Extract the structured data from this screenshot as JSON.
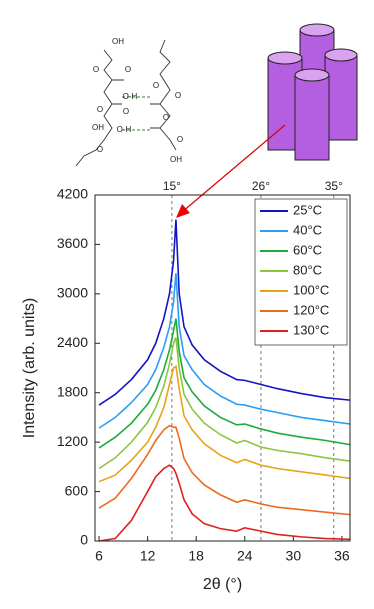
{
  "chart_data": {
    "type": "line",
    "xlabel": "2θ (°)",
    "ylabel": "Intensity (arb. units)",
    "xlim": [
      5.5,
      37
    ],
    "ylim": [
      0,
      4200
    ],
    "xticks": [
      6,
      12,
      18,
      24,
      30,
      36
    ],
    "yticks": [
      0,
      600,
      1200,
      1800,
      2400,
      3000,
      3600,
      4200
    ],
    "top_markers": [
      {
        "value": 15,
        "label": "15°"
      },
      {
        "value": 26,
        "label": "26°"
      },
      {
        "value": 35,
        "label": "35°"
      }
    ],
    "x": [
      6,
      8,
      10,
      12,
      13,
      14,
      14.7,
      15.2,
      15.5,
      15.9,
      16.5,
      17.5,
      19,
      21,
      23,
      24,
      26,
      28,
      31,
      34,
      37
    ],
    "series": [
      {
        "name": "25°C",
        "color": "#1414c4",
        "values": [
          1650,
          1780,
          1960,
          2200,
          2400,
          2700,
          3000,
          3400,
          3900,
          3000,
          2600,
          2380,
          2200,
          2060,
          1960,
          1950,
          1900,
          1850,
          1790,
          1740,
          1710
        ]
      },
      {
        "name": "40°C",
        "color": "#2a9df4",
        "values": [
          1370,
          1500,
          1680,
          1900,
          2080,
          2350,
          2600,
          2900,
          3250,
          2600,
          2250,
          2080,
          1900,
          1760,
          1660,
          1650,
          1600,
          1560,
          1500,
          1460,
          1420
        ]
      },
      {
        "name": "60°C",
        "color": "#1faa3c",
        "values": [
          1130,
          1260,
          1430,
          1660,
          1830,
          2080,
          2320,
          2550,
          2700,
          2300,
          1980,
          1810,
          1640,
          1500,
          1410,
          1420,
          1360,
          1310,
          1260,
          1220,
          1170
        ]
      },
      {
        "name": "80°C",
        "color": "#8cc63f",
        "values": [
          880,
          1010,
          1200,
          1440,
          1620,
          1880,
          2150,
          2400,
          2470,
          2100,
          1780,
          1600,
          1430,
          1290,
          1190,
          1220,
          1140,
          1100,
          1060,
          1010,
          970
        ]
      },
      {
        "name": "100°C",
        "color": "#e8a317",
        "values": [
          720,
          800,
          980,
          1200,
          1380,
          1620,
          1900,
          2100,
          2120,
          1850,
          1520,
          1350,
          1180,
          1040,
          950,
          990,
          920,
          880,
          840,
          800,
          760
        ]
      },
      {
        "name": "120°C",
        "color": "#ec6a1c",
        "values": [
          400,
          520,
          760,
          1050,
          1220,
          1350,
          1400,
          1380,
          1380,
          1250,
          1000,
          830,
          680,
          560,
          470,
          500,
          450,
          410,
          380,
          350,
          320
        ]
      },
      {
        "name": "130°C",
        "color": "#e02020",
        "values": [
          0,
          30,
          250,
          600,
          780,
          880,
          920,
          880,
          820,
          700,
          500,
          330,
          210,
          150,
          120,
          160,
          120,
          80,
          50,
          30,
          20
        ]
      }
    ],
    "legend": "upper right"
  },
  "diagram": {
    "labels": [
      "OH",
      "OH",
      "O",
      "O",
      "O",
      "O",
      "O-H",
      "O",
      "O",
      "O-H",
      "O",
      "O",
      "O",
      "OH"
    ]
  }
}
